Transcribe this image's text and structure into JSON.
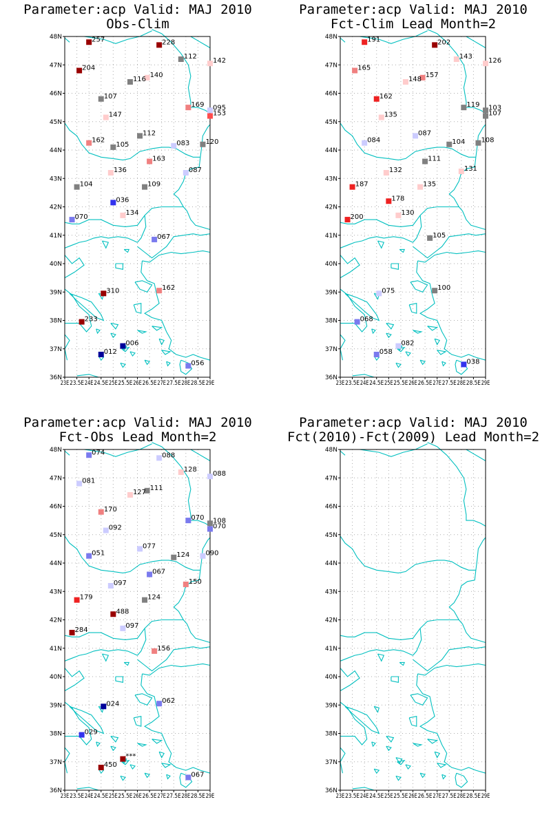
{
  "panels": [
    {
      "title1": "Parameter:acp Valid: MAJ 2010",
      "title2": "Obs-Clim",
      "points": [
        {
          "lon": 24.0,
          "lat": 47.8,
          "label": "257",
          "color": "#990000"
        },
        {
          "lon": 26.9,
          "lat": 47.7,
          "label": "228",
          "color": "#990000"
        },
        {
          "lon": 27.8,
          "lat": 47.2,
          "label": "112",
          "color": "#808080"
        },
        {
          "lon": 29.0,
          "lat": 47.05,
          "label": "142",
          "color": "#ffcccc"
        },
        {
          "lon": 23.6,
          "lat": 46.8,
          "label": "204",
          "color": "#990000"
        },
        {
          "lon": 26.4,
          "lat": 46.55,
          "label": "140",
          "color": "#ffcccc"
        },
        {
          "lon": 25.7,
          "lat": 46.4,
          "label": "116",
          "color": "#808080"
        },
        {
          "lon": 24.5,
          "lat": 45.8,
          "label": "107",
          "color": "#808080"
        },
        {
          "lon": 28.1,
          "lat": 45.5,
          "label": "169",
          "color": "#f08080"
        },
        {
          "lon": 29.0,
          "lat": 45.4,
          "label": "095",
          "color": "#ccccff"
        },
        {
          "lon": 29.0,
          "lat": 45.2,
          "label": "153",
          "color": "#ff4d4d"
        },
        {
          "lon": 24.7,
          "lat": 45.15,
          "label": "147",
          "color": "#ffcccc"
        },
        {
          "lon": 26.1,
          "lat": 44.5,
          "label": "112",
          "color": "#808080"
        },
        {
          "lon": 24.0,
          "lat": 44.25,
          "label": "162",
          "color": "#f08080"
        },
        {
          "lon": 25.0,
          "lat": 44.1,
          "label": "105",
          "color": "#808080"
        },
        {
          "lon": 27.5,
          "lat": 44.15,
          "label": "083",
          "color": "#ccccff"
        },
        {
          "lon": 28.7,
          "lat": 44.2,
          "label": "120",
          "color": "#808080"
        },
        {
          "lon": 26.5,
          "lat": 43.6,
          "label": "163",
          "color": "#f08080"
        },
        {
          "lon": 28.0,
          "lat": 43.2,
          "label": "087",
          "color": "#ccccff"
        },
        {
          "lon": 24.9,
          "lat": 43.2,
          "label": "136",
          "color": "#ffcccc"
        },
        {
          "lon": 23.5,
          "lat": 42.7,
          "label": "104",
          "color": "#808080"
        },
        {
          "lon": 26.3,
          "lat": 42.7,
          "label": "109",
          "color": "#808080"
        },
        {
          "lon": 25.0,
          "lat": 42.15,
          "label": "036",
          "color": "#3333ee"
        },
        {
          "lon": 25.4,
          "lat": 41.7,
          "label": "134",
          "color": "#ffcccc"
        },
        {
          "lon": 23.3,
          "lat": 41.55,
          "label": "070",
          "color": "#7a7aee"
        },
        {
          "lon": 26.7,
          "lat": 40.85,
          "label": "067",
          "color": "#7a7aee"
        },
        {
          "lon": 24.6,
          "lat": 38.95,
          "label": "310",
          "color": "#990000"
        },
        {
          "lon": 26.9,
          "lat": 39.05,
          "label": "162",
          "color": "#f08080"
        },
        {
          "lon": 23.7,
          "lat": 37.95,
          "label": "233",
          "color": "#990000"
        },
        {
          "lon": 25.4,
          "lat": 37.1,
          "label": "006",
          "color": "#000099"
        },
        {
          "lon": 24.5,
          "lat": 36.8,
          "label": "012",
          "color": "#000099"
        },
        {
          "lon": 28.1,
          "lat": 36.4,
          "label": "056",
          "color": "#7a7aee"
        }
      ]
    },
    {
      "title1": "Parameter:acp Valid: MAJ 2010",
      "title2": "Fct-Clim Lead Month=2",
      "points": [
        {
          "lon": 24.0,
          "lat": 47.8,
          "label": "191",
          "color": "#ee2222"
        },
        {
          "lon": 26.9,
          "lat": 47.7,
          "label": "202",
          "color": "#990000"
        },
        {
          "lon": 27.8,
          "lat": 47.2,
          "label": "143",
          "color": "#ffcccc"
        },
        {
          "lon": 29.0,
          "lat": 47.05,
          "label": "126",
          "color": "#ffcccc"
        },
        {
          "lon": 23.6,
          "lat": 46.8,
          "label": "165",
          "color": "#f08080"
        },
        {
          "lon": 26.4,
          "lat": 46.55,
          "label": "157",
          "color": "#f08080"
        },
        {
          "lon": 25.7,
          "lat": 46.4,
          "label": "148",
          "color": "#ffcccc"
        },
        {
          "lon": 24.5,
          "lat": 45.8,
          "label": "162",
          "color": "#ee2222"
        },
        {
          "lon": 28.1,
          "lat": 45.5,
          "label": "119",
          "color": "#808080"
        },
        {
          "lon": 29.0,
          "lat": 45.4,
          "label": "103",
          "color": "#808080"
        },
        {
          "lon": 29.0,
          "lat": 45.2,
          "label": "107",
          "color": "#808080"
        },
        {
          "lon": 24.7,
          "lat": 45.15,
          "label": "135",
          "color": "#ffcccc"
        },
        {
          "lon": 26.1,
          "lat": 44.5,
          "label": "087",
          "color": "#ccccff"
        },
        {
          "lon": 24.0,
          "lat": 44.25,
          "label": "084",
          "color": "#ccccff"
        },
        {
          "lon": 27.5,
          "lat": 44.2,
          "label": "104",
          "color": "#808080"
        },
        {
          "lon": 28.7,
          "lat": 44.25,
          "label": "108",
          "color": "#808080"
        },
        {
          "lon": 26.5,
          "lat": 43.6,
          "label": "111",
          "color": "#808080"
        },
        {
          "lon": 28.0,
          "lat": 43.25,
          "label": "131",
          "color": "#ffcccc"
        },
        {
          "lon": 24.9,
          "lat": 43.2,
          "label": "132",
          "color": "#ffcccc"
        },
        {
          "lon": 23.5,
          "lat": 42.7,
          "label": "187",
          "color": "#ee2222"
        },
        {
          "lon": 26.3,
          "lat": 42.7,
          "label": "135",
          "color": "#ffcccc"
        },
        {
          "lon": 25.0,
          "lat": 42.2,
          "label": "178",
          "color": "#ee2222"
        },
        {
          "lon": 25.4,
          "lat": 41.7,
          "label": "130",
          "color": "#ffcccc"
        },
        {
          "lon": 23.3,
          "lat": 41.55,
          "label": "200",
          "color": "#ee2222"
        },
        {
          "lon": 26.7,
          "lat": 40.9,
          "label": "105",
          "color": "#808080"
        },
        {
          "lon": 24.6,
          "lat": 38.95,
          "label": "075",
          "color": "#ccccff"
        },
        {
          "lon": 26.9,
          "lat": 39.05,
          "label": "100",
          "color": "#808080"
        },
        {
          "lon": 23.7,
          "lat": 37.95,
          "label": "068",
          "color": "#7a7aee"
        },
        {
          "lon": 25.4,
          "lat": 37.1,
          "label": "082",
          "color": "#ccccff"
        },
        {
          "lon": 24.5,
          "lat": 36.8,
          "label": "058",
          "color": "#7a7aee"
        },
        {
          "lon": 28.1,
          "lat": 36.45,
          "label": "038",
          "color": "#3333ee"
        }
      ]
    },
    {
      "title1": "Parameter:acp Valid: MAJ 2010",
      "title2": "Fct-Obs Lead Month=2",
      "points": [
        {
          "lon": 24.0,
          "lat": 47.8,
          "label": "074",
          "color": "#7a7aee"
        },
        {
          "lon": 26.9,
          "lat": 47.7,
          "label": "088",
          "color": "#ccccff"
        },
        {
          "lon": 27.8,
          "lat": 47.2,
          "label": "128",
          "color": "#ffcccc"
        },
        {
          "lon": 29.0,
          "lat": 47.05,
          "label": "088",
          "color": "#ccccff"
        },
        {
          "lon": 23.6,
          "lat": 46.8,
          "label": "081",
          "color": "#ccccff"
        },
        {
          "lon": 26.4,
          "lat": 46.55,
          "label": "111",
          "color": "#808080"
        },
        {
          "lon": 25.7,
          "lat": 46.4,
          "label": "127",
          "color": "#ffcccc"
        },
        {
          "lon": 24.5,
          "lat": 45.8,
          "label": "170",
          "color": "#f08080"
        },
        {
          "lon": 28.1,
          "lat": 45.5,
          "label": "070",
          "color": "#7a7aee"
        },
        {
          "lon": 29.0,
          "lat": 45.4,
          "label": "108",
          "color": "#808080"
        },
        {
          "lon": 29.0,
          "lat": 45.2,
          "label": "070",
          "color": "#7a7aee"
        },
        {
          "lon": 24.7,
          "lat": 45.15,
          "label": "092",
          "color": "#ccccff"
        },
        {
          "lon": 26.1,
          "lat": 44.5,
          "label": "077",
          "color": "#ccccff"
        },
        {
          "lon": 24.0,
          "lat": 44.25,
          "label": "051",
          "color": "#7a7aee"
        },
        {
          "lon": 27.5,
          "lat": 44.2,
          "label": "124",
          "color": "#808080"
        },
        {
          "lon": 28.7,
          "lat": 44.25,
          "label": "090",
          "color": "#ccccff"
        },
        {
          "lon": 26.5,
          "lat": 43.6,
          "label": "067",
          "color": "#7a7aee"
        },
        {
          "lon": 28.0,
          "lat": 43.25,
          "label": "150",
          "color": "#f08080"
        },
        {
          "lon": 24.9,
          "lat": 43.2,
          "label": "097",
          "color": "#ccccff"
        },
        {
          "lon": 23.5,
          "lat": 42.7,
          "label": "179",
          "color": "#ee2222"
        },
        {
          "lon": 26.3,
          "lat": 42.7,
          "label": "124",
          "color": "#808080"
        },
        {
          "lon": 25.0,
          "lat": 42.2,
          "label": "488",
          "color": "#990000"
        },
        {
          "lon": 25.4,
          "lat": 41.7,
          "label": "097",
          "color": "#ccccff"
        },
        {
          "lon": 23.3,
          "lat": 41.55,
          "label": "284",
          "color": "#990000"
        },
        {
          "lon": 26.7,
          "lat": 40.9,
          "label": "156",
          "color": "#f08080"
        },
        {
          "lon": 24.6,
          "lat": 38.95,
          "label": "024",
          "color": "#000099"
        },
        {
          "lon": 26.9,
          "lat": 39.05,
          "label": "062",
          "color": "#7a7aee"
        },
        {
          "lon": 23.7,
          "lat": 37.95,
          "label": "029",
          "color": "#3333ee"
        },
        {
          "lon": 25.4,
          "lat": 37.1,
          "label": "***",
          "color": "#990000"
        },
        {
          "lon": 24.5,
          "lat": 36.8,
          "label": "450",
          "color": "#990000"
        },
        {
          "lon": 28.1,
          "lat": 36.45,
          "label": "067",
          "color": "#7a7aee"
        }
      ]
    },
    {
      "title1": "Parameter:acp Valid: MAJ 2010",
      "title2": "Fct(2010)-Fct(2009) Lead Month=2",
      "points": []
    }
  ],
  "axes": {
    "lat_labels": [
      "36N",
      "37N",
      "38N",
      "39N",
      "40N",
      "41N",
      "42N",
      "43N",
      "44N",
      "45N",
      "46N",
      "47N",
      "48N"
    ],
    "lon_labels": [
      "23E",
      "23.5E",
      "24E",
      "24.5E",
      "25E",
      "25.5E",
      "26E",
      "26.5E",
      "27E",
      "27.5E",
      "28E",
      "28.5E",
      "29E"
    ],
    "lat_min": 36,
    "lat_max": 48,
    "lon_min": 23,
    "lon_max": 29
  },
  "colors": {
    "coastline": "#00bfbf",
    "grid": "#aaaaaa",
    "frame": "#000000"
  }
}
